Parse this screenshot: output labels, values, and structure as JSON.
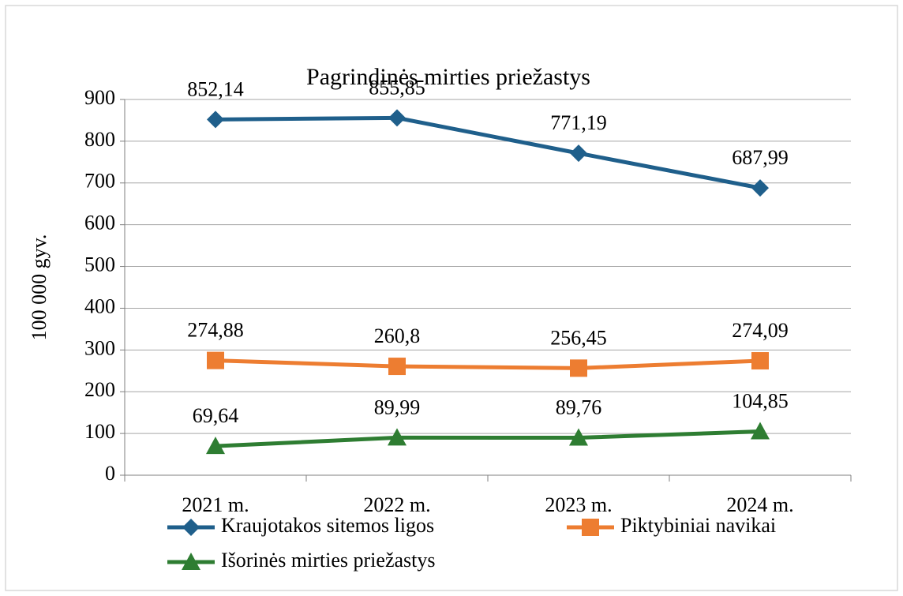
{
  "chart_data": {
    "type": "line",
    "title": "Pagrindinės mirties priežastys",
    "y_label": "100 000 gyv.",
    "categories": [
      "2021 m.",
      "2022 m.",
      "2023 m.",
      "2024 m."
    ],
    "series": [
      {
        "name": "Kraujotakos sitemos ligos",
        "color": "#1f5f8b",
        "marker": "diamond",
        "values": [
          852.14,
          855.85,
          771.19,
          687.99
        ],
        "value_labels": [
          "852,14",
          "855,85",
          "771,19",
          "687,99"
        ]
      },
      {
        "name": "Piktybiniai navikai",
        "color": "#ed7d31",
        "marker": "square",
        "values": [
          274.88,
          260.8,
          256.45,
          274.09
        ],
        "value_labels": [
          "274,88",
          "260,8",
          "256,45",
          "274,09"
        ]
      },
      {
        "name": "Išorinės mirties priežastys",
        "color": "#2e7d32",
        "marker": "triangle",
        "values": [
          69.64,
          89.99,
          89.76,
          104.85
        ],
        "value_labels": [
          "69,64",
          "89,99",
          "89,76",
          "104,85"
        ]
      }
    ],
    "ylim": [
      0,
      900
    ],
    "yticks": [
      0,
      100,
      200,
      300,
      400,
      500,
      600,
      700,
      800,
      900
    ],
    "grid": true
  }
}
